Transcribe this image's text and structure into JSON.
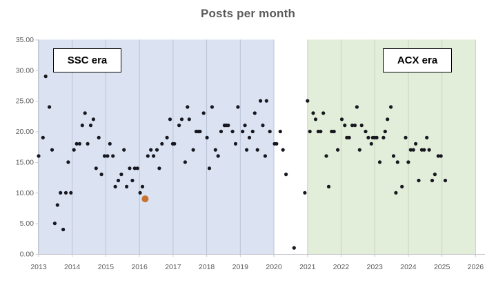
{
  "chart_data": {
    "type": "scatter",
    "title": "Posts per month",
    "xlabel": "",
    "ylabel": "",
    "legend": "none",
    "grid": "vertical-year-gridlines-only",
    "x_axis": {
      "min": 2013,
      "max": 2026,
      "tick_interval": 1,
      "ticks": [
        2013,
        2014,
        2015,
        2016,
        2017,
        2018,
        2019,
        2020,
        2021,
        2022,
        2023,
        2024,
        2025,
        2026
      ]
    },
    "y_axis": {
      "min": 0,
      "max": 35,
      "tick_interval": 5,
      "tick_labels": [
        "0.00",
        "5.00",
        "10.00",
        "15.00",
        "20.00",
        "25.00",
        "30.00",
        "35.00"
      ]
    },
    "regions": [
      {
        "label": "SSC era",
        "x_start": 2013,
        "x_end": 2020,
        "fill": "#dbe3f2",
        "gridline_color": "#b8c1d6"
      },
      {
        "label": "ACX era",
        "x_start": 2021,
        "x_end": 2026,
        "fill": "#e3eeda",
        "gridline_color": "#c6d4bb"
      }
    ],
    "series": [
      {
        "name": "Posts per month",
        "marker": "circle",
        "color": "#17171f",
        "radius": 2.6,
        "points": [
          [
            2013.0,
            16
          ],
          [
            2013.13,
            19
          ],
          [
            2013.21,
            29
          ],
          [
            2013.32,
            24
          ],
          [
            2013.4,
            17
          ],
          [
            2013.48,
            5
          ],
          [
            2013.56,
            8
          ],
          [
            2013.65,
            10
          ],
          [
            2013.73,
            4
          ],
          [
            2013.81,
            10
          ],
          [
            2013.88,
            15
          ],
          [
            2013.96,
            10
          ],
          [
            2014.05,
            17
          ],
          [
            2014.13,
            18
          ],
          [
            2014.22,
            18
          ],
          [
            2014.3,
            21
          ],
          [
            2014.38,
            23
          ],
          [
            2014.46,
            18
          ],
          [
            2014.55,
            21
          ],
          [
            2014.63,
            22
          ],
          [
            2014.71,
            14
          ],
          [
            2014.79,
            19
          ],
          [
            2014.87,
            13
          ],
          [
            2014.96,
            16
          ],
          [
            2015.05,
            16
          ],
          [
            2015.12,
            18
          ],
          [
            2015.21,
            16
          ],
          [
            2015.28,
            11
          ],
          [
            2015.37,
            12
          ],
          [
            2015.46,
            13
          ],
          [
            2015.54,
            17
          ],
          [
            2015.62,
            11
          ],
          [
            2015.71,
            14
          ],
          [
            2015.79,
            12
          ],
          [
            2015.86,
            14
          ],
          [
            2015.94,
            14
          ],
          [
            2016.02,
            10
          ],
          [
            2016.09,
            11
          ],
          [
            2016.25,
            16
          ],
          [
            2016.34,
            17
          ],
          [
            2016.42,
            16
          ],
          [
            2016.52,
            17
          ],
          [
            2016.59,
            14
          ],
          [
            2016.67,
            18
          ],
          [
            2016.82,
            19
          ],
          [
            2016.91,
            22
          ],
          [
            2016.99,
            18
          ],
          [
            2017.04,
            18
          ],
          [
            2017.18,
            21
          ],
          [
            2017.26,
            22
          ],
          [
            2017.36,
            15
          ],
          [
            2017.43,
            24
          ],
          [
            2017.48,
            22
          ],
          [
            2017.6,
            17
          ],
          [
            2017.69,
            20
          ],
          [
            2017.75,
            20
          ],
          [
            2017.8,
            20
          ],
          [
            2017.91,
            23
          ],
          [
            2018.01,
            19
          ],
          [
            2018.08,
            14
          ],
          [
            2018.16,
            24
          ],
          [
            2018.26,
            17
          ],
          [
            2018.34,
            16
          ],
          [
            2018.43,
            20
          ],
          [
            2018.53,
            21
          ],
          [
            2018.58,
            21
          ],
          [
            2018.64,
            21
          ],
          [
            2018.77,
            20
          ],
          [
            2018.86,
            18
          ],
          [
            2018.93,
            24
          ],
          [
            2019.07,
            20
          ],
          [
            2019.14,
            21
          ],
          [
            2019.19,
            17
          ],
          [
            2019.27,
            19
          ],
          [
            2019.37,
            20
          ],
          [
            2019.43,
            23
          ],
          [
            2019.51,
            17
          ],
          [
            2019.6,
            25
          ],
          [
            2019.67,
            21
          ],
          [
            2019.74,
            16
          ],
          [
            2019.78,
            25
          ],
          [
            2019.88,
            20
          ],
          [
            2020.02,
            18
          ],
          [
            2020.08,
            18
          ],
          [
            2020.19,
            20
          ],
          [
            2020.27,
            17
          ],
          [
            2020.36,
            13
          ],
          [
            2020.6,
            1
          ],
          [
            2020.92,
            10
          ],
          [
            2021.0,
            25
          ],
          [
            2021.07,
            20
          ],
          [
            2021.17,
            23
          ],
          [
            2021.24,
            22
          ],
          [
            2021.32,
            20
          ],
          [
            2021.39,
            20
          ],
          [
            2021.47,
            23
          ],
          [
            2021.56,
            16
          ],
          [
            2021.63,
            11
          ],
          [
            2021.72,
            20
          ],
          [
            2021.79,
            20
          ],
          [
            2021.9,
            17
          ],
          [
            2022.02,
            22
          ],
          [
            2022.11,
            21
          ],
          [
            2022.17,
            19
          ],
          [
            2022.24,
            19
          ],
          [
            2022.33,
            21
          ],
          [
            2022.41,
            21
          ],
          [
            2022.47,
            24
          ],
          [
            2022.55,
            17
          ],
          [
            2022.61,
            21
          ],
          [
            2022.73,
            20
          ],
          [
            2022.81,
            19
          ],
          [
            2022.9,
            18
          ],
          [
            2022.94,
            19
          ],
          [
            2023.0,
            19
          ],
          [
            2023.06,
            19
          ],
          [
            2023.15,
            15
          ],
          [
            2023.26,
            19
          ],
          [
            2023.31,
            20
          ],
          [
            2023.38,
            22
          ],
          [
            2023.48,
            24
          ],
          [
            2023.56,
            16
          ],
          [
            2023.63,
            10
          ],
          [
            2023.68,
            15
          ],
          [
            2023.81,
            11
          ],
          [
            2023.92,
            19
          ],
          [
            2024.0,
            15
          ],
          [
            2024.07,
            17
          ],
          [
            2024.15,
            17
          ],
          [
            2024.22,
            18
          ],
          [
            2024.31,
            12
          ],
          [
            2024.4,
            17
          ],
          [
            2024.47,
            17
          ],
          [
            2024.55,
            19
          ],
          [
            2024.62,
            17
          ],
          [
            2024.71,
            12
          ],
          [
            2024.79,
            13
          ],
          [
            2024.89,
            16
          ],
          [
            2024.97,
            16
          ],
          [
            2025.1,
            12
          ]
        ]
      },
      {
        "name": "Highlighted month",
        "marker": "circle",
        "color": "#c97131",
        "radius": 5,
        "points": [
          [
            2016.17,
            9
          ]
        ]
      }
    ]
  },
  "colors": {
    "background": "#ffffff",
    "axis": "#c3c6cb",
    "tick_label": "#595959",
    "title": "#595959",
    "era_box_background": "#ffffff",
    "era_box_border": "#000000"
  }
}
